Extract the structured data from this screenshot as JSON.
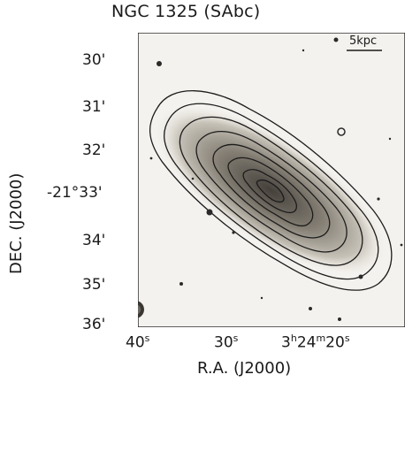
{
  "figure": {
    "title": "NGC 1325 (SAbc)",
    "scale_bar_label": "5kpc",
    "x_axis_title": "R.A. (J2000)",
    "y_axis_title": "DEC. (J2000)",
    "y_ticks": [
      "30'",
      "31'",
      "32'",
      "-21°33'",
      "34'",
      "35'",
      "36'"
    ],
    "x_ticks": [
      {
        "main": "40",
        "sup": "s"
      },
      {
        "main": "30",
        "sup": "s"
      },
      {
        "pre1": "3",
        "sup1": "h",
        "pre2": "24",
        "sup2": "m",
        "pre3": "20",
        "sup3": "s"
      }
    ]
  }
}
